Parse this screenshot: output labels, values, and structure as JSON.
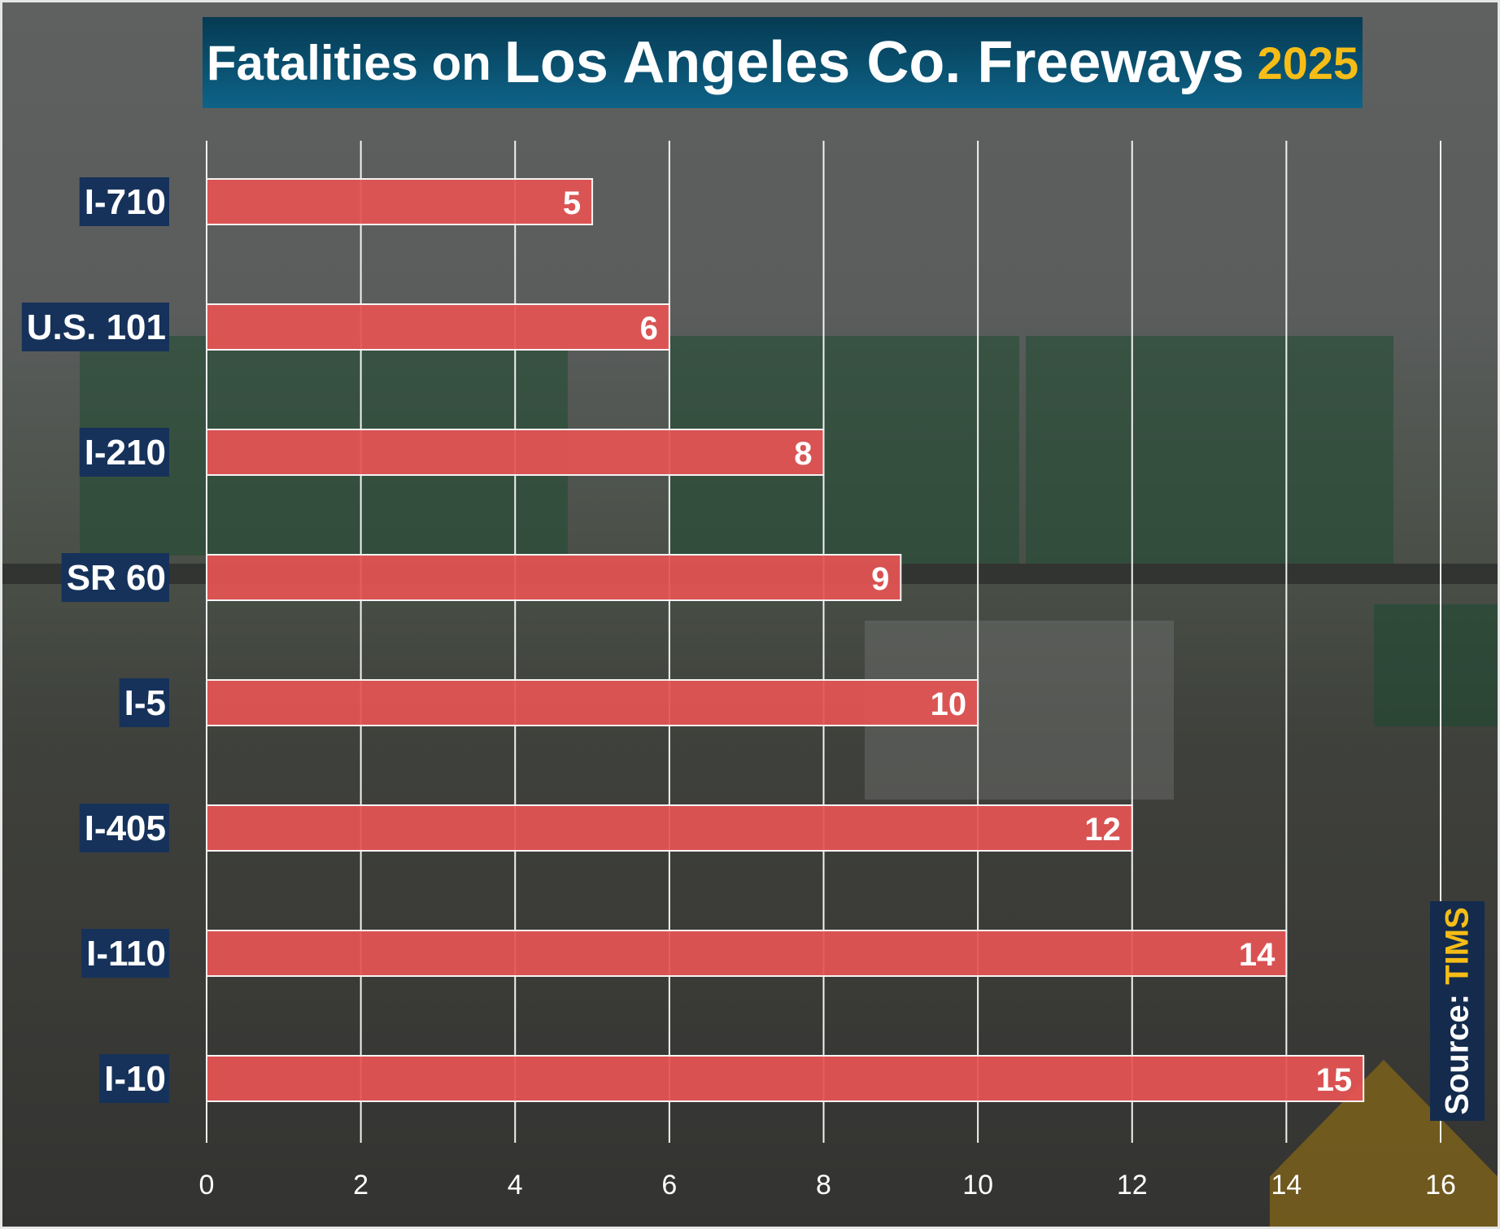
{
  "title": {
    "part1": "Fatalities on",
    "part2": "Los Angeles Co. Freeways",
    "part3": "2025"
  },
  "source": {
    "label": "Source:",
    "name": "TIMS"
  },
  "colors": {
    "bar": "#e55454",
    "label_bg": "#16325a",
    "title_bg": "#0a4f6e",
    "accent": "#f6bd16"
  },
  "chart_data": {
    "type": "bar",
    "orientation": "horizontal",
    "categories": [
      "I-710",
      "U.S. 101",
      "I-210",
      "SR 60",
      "I-5",
      "I-405",
      "I-110",
      "I-10"
    ],
    "values": [
      5,
      6,
      8,
      9,
      10,
      12,
      14,
      15
    ],
    "xlim": [
      0,
      16
    ],
    "xticks": [
      "0",
      "2",
      "4",
      "6",
      "8",
      "10",
      "12",
      "14",
      "16"
    ],
    "grid": true,
    "data_labels": true,
    "title": "Fatalities on Los Angeles Co. Freeways 2025"
  }
}
